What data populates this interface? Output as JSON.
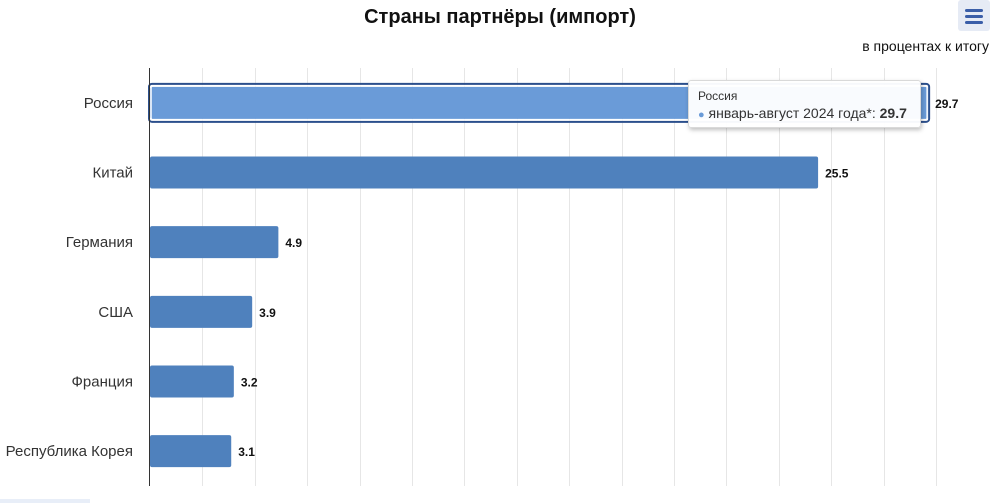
{
  "chart_data": {
    "type": "bar",
    "orientation": "horizontal",
    "title": "Страны партнёры (импорт)",
    "subtitle": "в процентах к итогу",
    "categories": [
      "Россия",
      "Китай",
      "Германия",
      "США",
      "Франция",
      "Республика Корея"
    ],
    "series": [
      {
        "name": "январь-август 2024 года*",
        "values": [
          29.7,
          25.5,
          4.9,
          3.9,
          3.2,
          3.1
        ]
      }
    ],
    "xlim": [
      0,
      30
    ],
    "x_tick_interval": 2,
    "grid": true,
    "legend": "none",
    "bar_color": "#4f81bd",
    "hover_bar_color": "#6a9bd8",
    "hover_border_color": "#2b4f8c",
    "data_labels": true
  },
  "tooltip": {
    "category": "Россия",
    "series_name": "январь-август 2024 года*",
    "separator": ": ",
    "value": "29.7"
  },
  "menu": {
    "icon": "hamburger-menu-icon"
  }
}
